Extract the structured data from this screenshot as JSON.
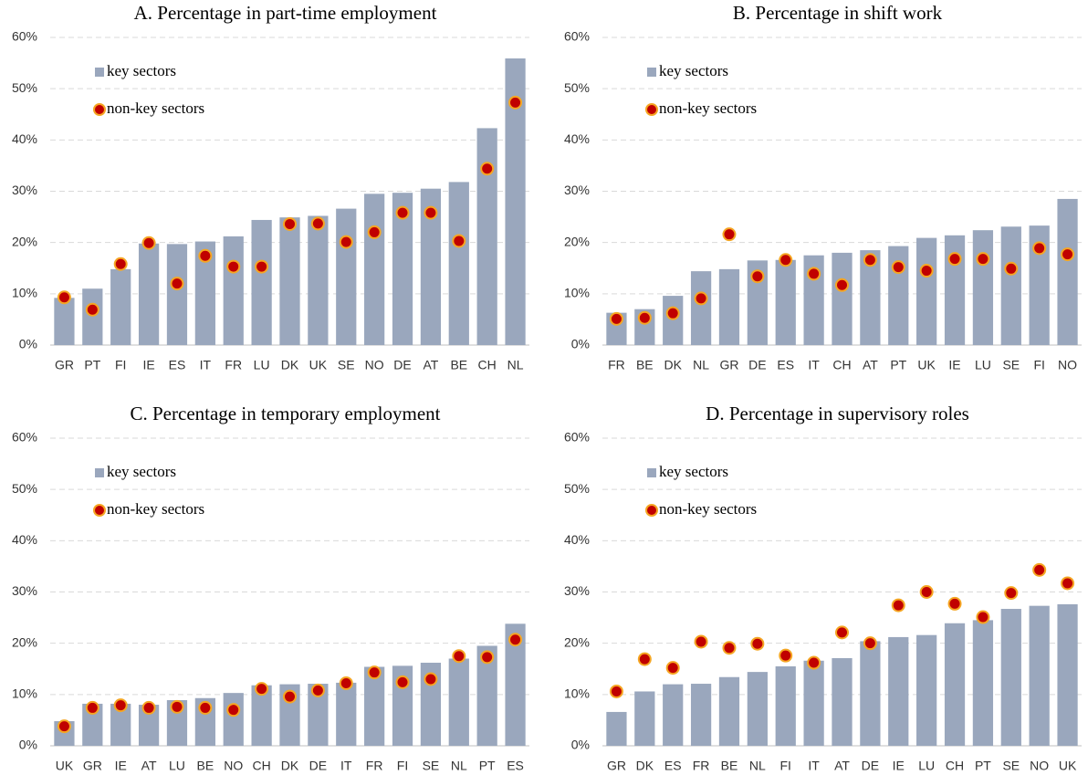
{
  "chart_data": [
    {
      "type": "bar",
      "title": "A. Percentage in part-time employment",
      "categories": [
        "GR",
        "PT",
        "FI",
        "IE",
        "ES",
        "IT",
        "FR",
        "LU",
        "DK",
        "UK",
        "SE",
        "NO",
        "DE",
        "AT",
        "BE",
        "CH",
        "NL"
      ],
      "series": [
        {
          "name": "key sectors",
          "type": "bar",
          "color": "#9aa7bd",
          "values": [
            9.2,
            11.0,
            14.8,
            19.8,
            19.7,
            20.2,
            21.2,
            24.4,
            24.9,
            25.2,
            26.6,
            29.5,
            29.7,
            30.5,
            31.8,
            42.3,
            55.9
          ]
        },
        {
          "name": "non-key sectors",
          "type": "scatter",
          "color": "#c00000",
          "values": [
            9.3,
            6.9,
            15.8,
            19.9,
            12.0,
            17.4,
            15.3,
            15.3,
            23.6,
            23.7,
            20.1,
            22.0,
            25.8,
            25.8,
            20.3,
            34.4,
            47.3
          ]
        }
      ],
      "ylim": [
        0,
        60
      ],
      "yticks": [
        {
          "value": 0,
          "label": "0%"
        },
        {
          "value": 10,
          "label": "10%"
        },
        {
          "value": 20,
          "label": "20%"
        },
        {
          "value": 30,
          "label": "30%"
        },
        {
          "value": 40,
          "label": "40%"
        },
        {
          "value": 50,
          "label": "50%"
        },
        {
          "value": 60,
          "label": "60%"
        }
      ],
      "grid": true
    },
    {
      "type": "bar",
      "title": "B. Percentage in shift work",
      "categories": [
        "FR",
        "BE",
        "DK",
        "NL",
        "GR",
        "DE",
        "ES",
        "IT",
        "CH",
        "AT",
        "PT",
        "UK",
        "IE",
        "LU",
        "SE",
        "FI",
        "NO"
      ],
      "series": [
        {
          "name": "key sectors",
          "type": "bar",
          "color": "#9aa7bd",
          "values": [
            6.3,
            7.0,
            9.6,
            14.4,
            14.8,
            16.5,
            16.6,
            17.5,
            18.0,
            18.5,
            19.3,
            20.9,
            21.4,
            22.4,
            23.1,
            23.3,
            28.5
          ]
        },
        {
          "name": "non-key sectors",
          "type": "scatter",
          "color": "#c00000",
          "values": [
            5.1,
            5.3,
            6.2,
            9.1,
            21.6,
            13.4,
            16.6,
            13.9,
            11.7,
            16.6,
            15.2,
            14.5,
            16.8,
            16.8,
            14.9,
            18.9,
            17.7
          ]
        }
      ],
      "ylim": [
        0,
        60
      ],
      "yticks": [
        {
          "value": 0,
          "label": "0%"
        },
        {
          "value": 10,
          "label": "10%"
        },
        {
          "value": 20,
          "label": "20%"
        },
        {
          "value": 30,
          "label": "30%"
        },
        {
          "value": 40,
          "label": "40%"
        },
        {
          "value": 50,
          "label": "50%"
        },
        {
          "value": 60,
          "label": "60%"
        }
      ],
      "grid": true
    },
    {
      "type": "bar",
      "title": "C. Percentage in temporary employment",
      "categories": [
        "UK",
        "GR",
        "IE",
        "AT",
        "LU",
        "BE",
        "NO",
        "CH",
        "DK",
        "DE",
        "IT",
        "FR",
        "FI",
        "SE",
        "NL",
        "PT",
        "ES"
      ],
      "series": [
        {
          "name": "key sectors",
          "type": "bar",
          "color": "#9aa7bd",
          "values": [
            4.8,
            8.2,
            8.2,
            8.0,
            8.9,
            9.3,
            10.3,
            11.8,
            12.0,
            12.1,
            12.3,
            15.4,
            15.6,
            16.2,
            17.0,
            19.5,
            23.8
          ]
        },
        {
          "name": "non-key sectors",
          "type": "scatter",
          "color": "#c00000",
          "values": [
            3.8,
            7.4,
            7.9,
            7.4,
            7.6,
            7.4,
            7.0,
            11.1,
            9.6,
            10.8,
            12.2,
            14.3,
            12.4,
            13.0,
            17.5,
            17.3,
            20.7
          ]
        }
      ],
      "ylim": [
        0,
        60
      ],
      "yticks": [
        {
          "value": 0,
          "label": "0%"
        },
        {
          "value": 10,
          "label": "10%"
        },
        {
          "value": 20,
          "label": "20%"
        },
        {
          "value": 30,
          "label": "30%"
        },
        {
          "value": 40,
          "label": "40%"
        },
        {
          "value": 50,
          "label": "50%"
        },
        {
          "value": 60,
          "label": "60%"
        }
      ],
      "grid": true
    },
    {
      "type": "bar",
      "title": "D. Percentage in supervisory roles",
      "categories": [
        "GR",
        "DK",
        "ES",
        "FR",
        "BE",
        "NL",
        "FI",
        "IT",
        "AT",
        "DE",
        "IE",
        "LU",
        "CH",
        "PT",
        "SE",
        "NO",
        "UK"
      ],
      "series": [
        {
          "name": "key sectors",
          "type": "bar",
          "color": "#9aa7bd",
          "values": [
            6.6,
            10.6,
            12.0,
            12.1,
            13.4,
            14.4,
            15.5,
            16.6,
            17.1,
            20.4,
            21.2,
            21.6,
            23.9,
            24.5,
            26.7,
            27.3,
            27.6
          ]
        },
        {
          "name": "non-key sectors",
          "type": "scatter",
          "color": "#c00000",
          "values": [
            10.6,
            16.9,
            15.2,
            20.3,
            19.1,
            19.9,
            17.6,
            16.2,
            22.1,
            20.0,
            27.4,
            30.0,
            27.7,
            25.1,
            29.8,
            34.3,
            31.7
          ]
        }
      ],
      "ylim": [
        0,
        60
      ],
      "yticks": [
        {
          "value": 0,
          "label": "0%"
        },
        {
          "value": 10,
          "label": "10%"
        },
        {
          "value": 20,
          "label": "20%"
        },
        {
          "value": 30,
          "label": "30%"
        },
        {
          "value": 40,
          "label": "40%"
        },
        {
          "value": 50,
          "label": "50%"
        },
        {
          "value": 60,
          "label": "60%"
        }
      ],
      "grid": true
    }
  ]
}
